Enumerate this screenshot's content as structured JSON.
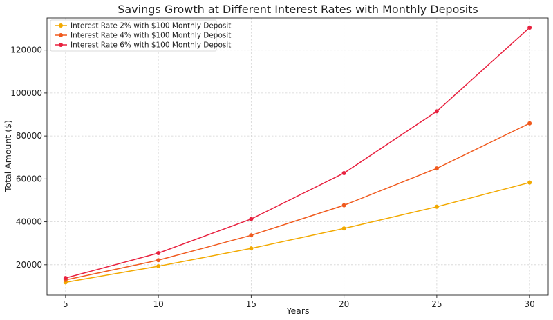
{
  "chart_data": {
    "type": "line",
    "title": "Savings Growth at Different Interest Rates with Monthly Deposits",
    "xlabel": "Years",
    "ylabel": "Total Amount ($)",
    "x": [
      5,
      10,
      15,
      20,
      25,
      30
    ],
    "x_ticks": [
      5,
      10,
      15,
      20,
      25,
      30
    ],
    "y_ticks": [
      20000,
      40000,
      60000,
      80000,
      100000,
      120000
    ],
    "xlim": [
      4.0,
      31.0
    ],
    "ylim": [
      5800,
      135000
    ],
    "grid": true,
    "legend_position": "top-left",
    "series": [
      {
        "name": "Interest Rate 2% with $100 Monthly Deposit",
        "color": "#f2a900",
        "values": [
          11800,
          19300,
          27600,
          36900,
          47000,
          58300
        ]
      },
      {
        "name": "Interest Rate 4% with $100 Monthly Deposit",
        "color": "#f05a1e",
        "values": [
          12900,
          22100,
          33700,
          47700,
          64900,
          85900
        ]
      },
      {
        "name": "Interest Rate 6% with $100 Monthly Deposit",
        "color": "#e8213f",
        "values": [
          13800,
          25400,
          41300,
          62700,
          91500,
          130500
        ]
      }
    ]
  }
}
